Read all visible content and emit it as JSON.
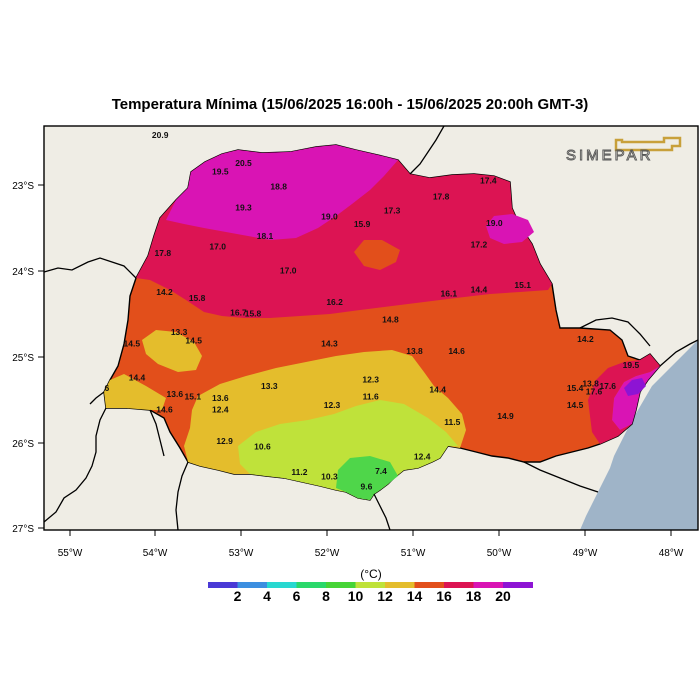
{
  "title": "Temperatura Mínima (15/06/2025 16:00h - 15/06/2025 20:00h GMT-3)",
  "logo_text": "SIMEPAR",
  "colors": {
    "ocean": "#9fb4c8",
    "land": "#efede5",
    "c_10_12": "#bfe23a",
    "c_8_10": "#4fd64a",
    "c_12_14": "#e4bd2c",
    "c_14_16": "#e24f1b",
    "c_16_18": "#dc1453",
    "c_18_20": "#d914b4",
    "c_20_plus": "#8d14d4"
  },
  "axes": {
    "lon_labels": [
      "55°W",
      "54°W",
      "53°W",
      "52°W",
      "51°W",
      "50°W",
      "49°W",
      "48°W"
    ],
    "lat_labels": [
      "23°S",
      "24°S",
      "25°S",
      "26°S",
      "27°S"
    ]
  },
  "colorbar": {
    "unit": "(°C)",
    "labels": [
      "2",
      "4",
      "6",
      "8",
      "10",
      "12",
      "14",
      "16",
      "18",
      "20"
    ],
    "colors": [
      "#4a3ad6",
      "#3c8fe0",
      "#28d8d0",
      "#2ad86a",
      "#46d436",
      "#bfe23a",
      "#e4bd2c",
      "#e24f1b",
      "#dc1453",
      "#d914b4",
      "#8d14d4"
    ]
  },
  "station_values": [
    {
      "v": "20.9",
      "lon": -53.95,
      "lat": -22.45
    },
    {
      "v": "20.5",
      "lon": -52.98,
      "lat": -22.78
    },
    {
      "v": "19.5",
      "lon": -53.25,
      "lat": -22.88
    },
    {
      "v": "18.8",
      "lon": -52.57,
      "lat": -23.05
    },
    {
      "v": "17.4",
      "lon": -50.13,
      "lat": -22.98
    },
    {
      "v": "17.8",
      "lon": -50.68,
      "lat": -23.17
    },
    {
      "v": "19.3",
      "lon": -52.98,
      "lat": -23.3
    },
    {
      "v": "19.0",
      "lon": -51.98,
      "lat": -23.4
    },
    {
      "v": "17.3",
      "lon": -51.25,
      "lat": -23.33
    },
    {
      "v": "15.9",
      "lon": -51.6,
      "lat": -23.49
    },
    {
      "v": "19.0",
      "lon": -50.06,
      "lat": -23.48
    },
    {
      "v": "18.1",
      "lon": -52.73,
      "lat": -23.63
    },
    {
      "v": "17.0",
      "lon": -53.28,
      "lat": -23.75
    },
    {
      "v": "17.2",
      "lon": -50.24,
      "lat": -23.73
    },
    {
      "v": "17.8",
      "lon": -53.92,
      "lat": -23.83
    },
    {
      "v": "17.0",
      "lon": -52.46,
      "lat": -24.03
    },
    {
      "v": "15.1",
      "lon": -49.73,
      "lat": -24.2
    },
    {
      "v": "14.2",
      "lon": -53.9,
      "lat": -24.28
    },
    {
      "v": "16.1",
      "lon": -50.59,
      "lat": -24.3
    },
    {
      "v": "14.4",
      "lon": -50.24,
      "lat": -24.25
    },
    {
      "v": "15.8",
      "lon": -53.52,
      "lat": -24.35
    },
    {
      "v": "16.2",
      "lon": -51.92,
      "lat": -24.4
    },
    {
      "v": "16.7",
      "lon": -53.04,
      "lat": -24.52
    },
    {
      "v": "15.8",
      "lon": -52.87,
      "lat": -24.53
    },
    {
      "v": "14.8",
      "lon": -51.27,
      "lat": -24.6
    },
    {
      "v": "13.3",
      "lon": -53.73,
      "lat": -24.75
    },
    {
      "v": "14.5",
      "lon": -53.56,
      "lat": -24.85
    },
    {
      "v": "14.5",
      "lon": -54.28,
      "lat": -24.88
    },
    {
      "v": "14.3",
      "lon": -51.98,
      "lat": -24.88
    },
    {
      "v": "14.2",
      "lon": -49.0,
      "lat": -24.83
    },
    {
      "v": "13.8",
      "lon": -50.99,
      "lat": -24.97
    },
    {
      "v": "14.6",
      "lon": -50.5,
      "lat": -24.97
    },
    {
      "v": "19.5",
      "lon": -48.47,
      "lat": -25.13
    },
    {
      "v": "14.4",
      "lon": -54.22,
      "lat": -25.28
    },
    {
      "v": "12.3",
      "lon": -51.5,
      "lat": -25.3
    },
    {
      "v": "13.3",
      "lon": -52.68,
      "lat": -25.38
    },
    {
      "v": "13.8",
      "lon": -48.94,
      "lat": -25.35
    },
    {
      "v": "15.4",
      "lon": -49.12,
      "lat": -25.4
    },
    {
      "v": "17.6",
      "lon": -48.74,
      "lat": -25.38
    },
    {
      "v": "17.6",
      "lon": -48.9,
      "lat": -25.44
    },
    {
      "v": "14.4",
      "lon": -50.72,
      "lat": -25.42
    },
    {
      "v": "13.6",
      "lon": -53.78,
      "lat": -25.47
    },
    {
      "v": "15.1",
      "lon": -53.57,
      "lat": -25.5
    },
    {
      "v": "13.6",
      "lon": -53.25,
      "lat": -25.52
    },
    {
      "v": "11.6",
      "lon": -51.5,
      "lat": -25.5
    },
    {
      "v": "12.3",
      "lon": -51.95,
      "lat": -25.6
    },
    {
      "v": "14.6",
      "lon": -53.9,
      "lat": -25.65
    },
    {
      "v": "12.4",
      "lon": -53.25,
      "lat": -25.65
    },
    {
      "v": "14.5",
      "lon": -49.12,
      "lat": -25.6
    },
    {
      "v": "14.9",
      "lon": -49.93,
      "lat": -25.73
    },
    {
      "v": "11.5",
      "lon": -50.55,
      "lat": -25.8
    },
    {
      "v": "12.9",
      "lon": -53.2,
      "lat": -26.02
    },
    {
      "v": "10.6",
      "lon": -52.76,
      "lat": -26.08
    },
    {
      "v": "12.4",
      "lon": -50.9,
      "lat": -26.2
    },
    {
      "v": "7.4",
      "lon": -51.38,
      "lat": -26.37
    },
    {
      "v": "11.2",
      "lon": -52.33,
      "lat": -26.38
    },
    {
      "v": "10.3",
      "lon": -51.98,
      "lat": -26.43
    },
    {
      "v": "9.6",
      "lon": -51.55,
      "lat": -26.55
    },
    {
      "v": "6",
      "lon": -54.57,
      "lat": -25.4
    }
  ]
}
